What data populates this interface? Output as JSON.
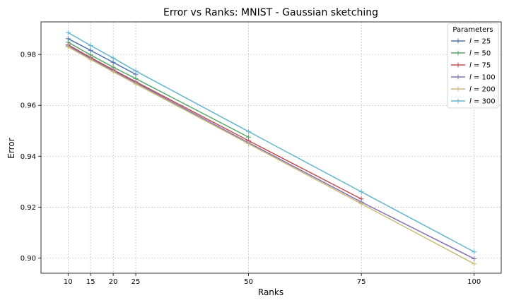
{
  "chart_data": {
    "type": "line",
    "title": "Error vs Ranks: MNIST - Gaussian sketching",
    "xlabel": "Ranks",
    "ylabel": "Error",
    "xlim": [
      4,
      106
    ],
    "ylim": [
      0.894,
      0.9928
    ],
    "xticks": [
      10,
      15,
      20,
      25,
      50,
      75,
      100
    ],
    "yticks": [
      0.9,
      0.92,
      0.94,
      0.96,
      0.98
    ],
    "ytick_labels": [
      "0.90",
      "0.92",
      "0.94",
      "0.96",
      "0.98"
    ],
    "grid": true,
    "legend": {
      "title": "Parameters",
      "position": "top-right"
    },
    "series": [
      {
        "name": "l = 25",
        "label_var": "l",
        "label_value": "25",
        "color": "#4c72b0",
        "x": [
          10,
          15,
          20,
          25
        ],
        "y": [
          0.9862,
          0.9816,
          0.9769,
          0.9722
        ]
      },
      {
        "name": "l = 50",
        "label_var": "l",
        "label_value": "50",
        "color": "#55a868",
        "x": [
          10,
          15,
          20,
          25,
          50
        ],
        "y": [
          0.9848,
          0.9798,
          0.975,
          0.9705,
          0.9475
        ]
      },
      {
        "name": "l = 75",
        "label_var": "l",
        "label_value": "75",
        "color": "#c44e52",
        "x": [
          10,
          15,
          20,
          25,
          50,
          75
        ],
        "y": [
          0.9838,
          0.9788,
          0.974,
          0.9693,
          0.9461,
          0.9232
        ]
      },
      {
        "name": "l = 100",
        "label_var": "l",
        "label_value": "100",
        "color": "#8172b2",
        "x": [
          10,
          15,
          20,
          25,
          50,
          75,
          100
        ],
        "y": [
          0.9834,
          0.9784,
          0.9736,
          0.9689,
          0.9453,
          0.922,
          0.8997
        ]
      },
      {
        "name": "l = 200",
        "label_var": "l",
        "label_value": "200",
        "color": "#ccb974",
        "x": [
          10,
          15,
          20,
          25,
          50,
          75,
          100
        ],
        "y": [
          0.983,
          0.978,
          0.9732,
          0.9684,
          0.9449,
          0.9213,
          0.8977
        ]
      },
      {
        "name": "l = 300",
        "label_var": "l",
        "label_value": "300",
        "color": "#64b5cd",
        "x": [
          10,
          15,
          20,
          25,
          50,
          75,
          100
        ],
        "y": [
          0.9886,
          0.9835,
          0.9786,
          0.9735,
          0.9497,
          0.926,
          0.9024
        ]
      }
    ]
  }
}
